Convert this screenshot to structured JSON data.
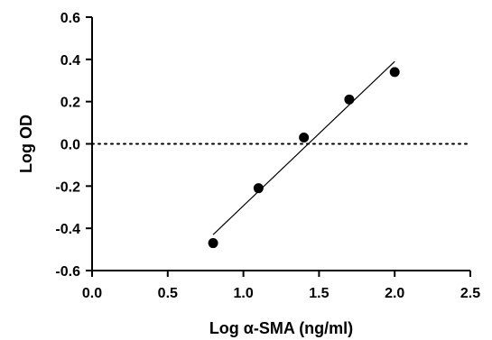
{
  "chart_data": {
    "type": "scatter",
    "title": "",
    "xlabel": "Log α-SMA (ng/ml)",
    "ylabel": "Log OD",
    "xlim": [
      0.0,
      2.5
    ],
    "ylim": [
      -0.6,
      0.6
    ],
    "x_ticks": [
      0.0,
      0.5,
      1.0,
      1.5,
      2.0,
      2.5
    ],
    "x_tick_labels": [
      "0.0",
      "0.5",
      "1.0",
      "1.5",
      "2.0",
      "2.5"
    ],
    "y_ticks": [
      -0.6,
      -0.4,
      -0.2,
      0.0,
      0.2,
      0.4,
      0.6
    ],
    "y_tick_labels": [
      "-0.6",
      "-0.4",
      "-0.2",
      "0.0",
      "0.2",
      "0.4",
      "0.6"
    ],
    "grid": false,
    "legend": "none",
    "points": {
      "x": [
        0.8,
        1.1,
        1.4,
        1.7,
        2.0
      ],
      "y": [
        -0.47,
        -0.21,
        0.03,
        0.21,
        0.34
      ]
    },
    "fit_line": {
      "x": [
        0.8,
        2.0
      ],
      "y": [
        -0.43,
        0.39
      ]
    },
    "reference_line": {
      "y": 0.0,
      "style": "dotted"
    },
    "colors": {
      "points": "#000000",
      "lines": "#000000"
    }
  }
}
